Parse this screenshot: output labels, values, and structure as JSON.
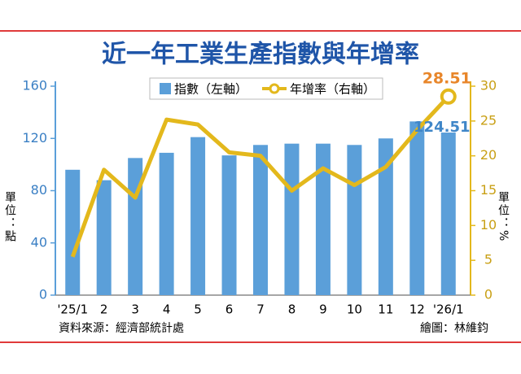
{
  "chart_data": {
    "type": "combo",
    "title": "近一年工業生產指數與年增率",
    "categories": [
      "'25/1",
      "2",
      "3",
      "4",
      "5",
      "6",
      "7",
      "8",
      "9",
      "10",
      "11",
      "12",
      "'26/1"
    ],
    "series": [
      {
        "name": "指數（左軸）",
        "type": "bar",
        "color": "#5b9fd9",
        "values": [
          96,
          88,
          105,
          109,
          121,
          107,
          115,
          116,
          116,
          115,
          120,
          133,
          124.51
        ]
      },
      {
        "name": "年增率（右軸）",
        "type": "line",
        "axis": "y2",
        "color": "#e3b81c",
        "values": [
          5.5,
          18,
          14,
          25.2,
          24.5,
          20.5,
          20,
          15,
          18.2,
          15.8,
          18.4,
          23.7,
          28.51
        ]
      }
    ],
    "ylim": [
      0,
      160
    ],
    "yticks": [
      0,
      40,
      80,
      120,
      160
    ],
    "y2lim": [
      0,
      30
    ],
    "y2ticks": [
      0,
      5,
      10,
      15,
      20,
      25,
      30
    ],
    "ylabel": "單位：點",
    "y2label": "單位：%",
    "source": "資料來源：經濟部統計處",
    "credit": "繪圖：林維鈞",
    "legend": "top"
  }
}
